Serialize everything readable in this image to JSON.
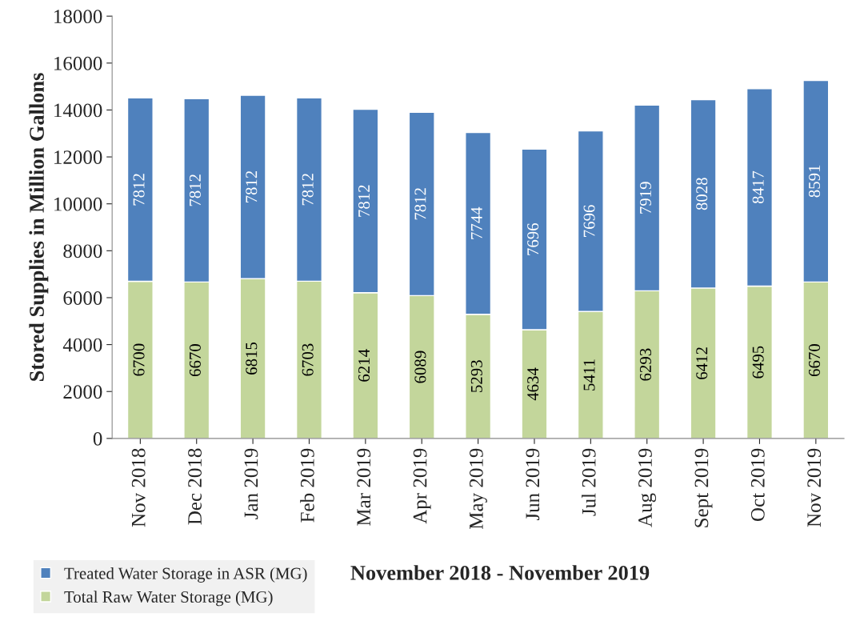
{
  "chart_data": {
    "type": "bar",
    "stacked": true,
    "xlabel": "November 2018 - November 2019",
    "ylabel": "Stored Supplies in Million Gallons",
    "categories": [
      "Nov 2018",
      "Dec 2018",
      "Jan 2019",
      "Feb 2019",
      "Mar 2019",
      "Apr 2019",
      "May 2019",
      "Jun 2019",
      "Jul 2019",
      "Aug 2019",
      "Sept 2019",
      "Oct 2019",
      "Nov 2019"
    ],
    "series": [
      {
        "name": "Total Raw Water Storage (MG)",
        "color": "#c3d69b",
        "values": [
          6700,
          6670,
          6815,
          6703,
          6214,
          6089,
          5293,
          4634,
          5411,
          6293,
          6412,
          6495,
          6670
        ]
      },
      {
        "name": "Treated Water Storage in ASR (MG)",
        "color": "#4f81bd",
        "values": [
          7812,
          7812,
          7812,
          7812,
          7812,
          7812,
          7744,
          7696,
          7696,
          7919,
          8028,
          8417,
          8591
        ]
      }
    ],
    "ylim": [
      0,
      18000
    ],
    "yticks": [
      0,
      2000,
      4000,
      6000,
      8000,
      10000,
      12000,
      14000,
      16000,
      18000
    ],
    "data_labels": true,
    "grid": false,
    "legend": "bottom left"
  }
}
